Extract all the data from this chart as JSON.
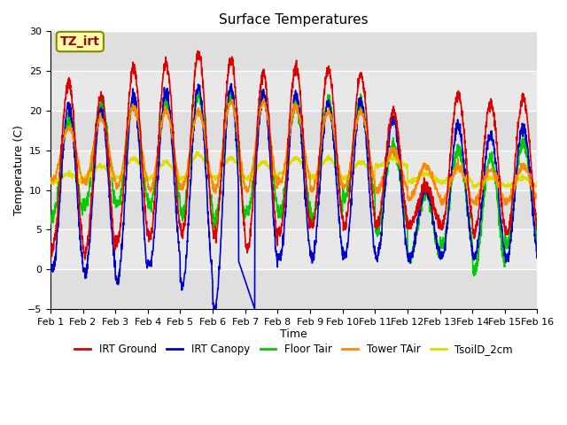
{
  "title": "Surface Temperatures",
  "xlabel": "Time",
  "ylabel": "Temperature (C)",
  "xlim_days": [
    0,
    15
  ],
  "ylim": [
    -5,
    30
  ],
  "yticks": [
    -5,
    0,
    5,
    10,
    15,
    20,
    25,
    30
  ],
  "xtick_labels": [
    "Feb 1",
    "Feb 2",
    "Feb 3",
    "Feb 4",
    "Feb 5",
    "Feb 6",
    "Feb 7",
    "Feb 8",
    "Feb 9",
    "Feb 10",
    "Feb 11",
    "Feb 12",
    "Feb 13",
    "Feb 14",
    "Feb 15",
    "Feb 16"
  ],
  "annotation_text": "TZ_irt",
  "colors": {
    "irt_ground": "#dd0000",
    "irt_canopy": "#0000cc",
    "floor_tair": "#00cc00",
    "tower_tair": "#ff8800",
    "tsoil_2cm": "#dddd00"
  },
  "legend_labels": [
    "IRT Ground",
    "IRT Canopy",
    "Floor Tair",
    "Tower TAir",
    "TsoilD_2cm"
  ],
  "background_color": "#e8e8e8",
  "plot_bg_color": "#e8e8e8",
  "title_fontsize": 11,
  "axis_fontsize": 9,
  "tick_fontsize": 8
}
